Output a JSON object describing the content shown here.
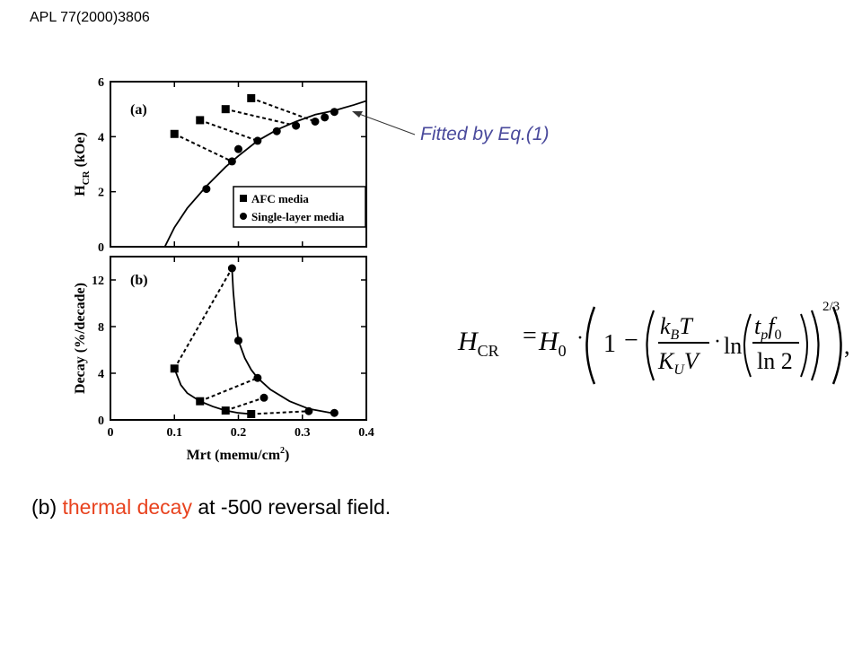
{
  "reference": "APL 77(2000)3806",
  "fit_annotation": "Fitted by Eq.(1)",
  "caption": {
    "prefix": "(b) ",
    "highlight": "thermal decay",
    "suffix": " at -500 reversal field.",
    "highlight_color": "#e8431f"
  },
  "equation": {
    "lhs": "H",
    "lhs_sub": "CR",
    "h0": "H",
    "h0_sub": "0",
    "one": "1",
    "kbT_num": "k",
    "kbT_num_sub": "B",
    "kbT_num_T": "T",
    "kuV_den": "K",
    "kuV_den_sub": "U",
    "kuV_den_V": "V",
    "ln": "ln",
    "tpf0_num_t": "t",
    "tpf0_num_t_sub": "p",
    "tpf0_num_f": "f",
    "tpf0_num_f_sub": "0",
    "tpf0_den": "ln 2",
    "exponent": "2/3"
  },
  "chart_data": [
    {
      "type": "scatter",
      "panel_label": "(a)",
      "ylabel": "H",
      "ylabel_sub": "CR",
      "ylabel_unit": "(kOe)",
      "xlim": [
        0,
        0.4
      ],
      "ylim": [
        0,
        6
      ],
      "y_ticks": [
        "0",
        "2",
        "4",
        "6"
      ],
      "grid": false,
      "legend_position": "bottom-right",
      "series": [
        {
          "name": "AFC media",
          "marker": "square",
          "x": [
            0.1,
            0.14,
            0.18,
            0.22
          ],
          "y": [
            4.1,
            4.6,
            5.0,
            5.4
          ]
        },
        {
          "name": "Single-layer media",
          "marker": "circle",
          "x": [
            0.15,
            0.19,
            0.2,
            0.23,
            0.26,
            0.29,
            0.32,
            0.335,
            0.35
          ],
          "y": [
            2.1,
            3.1,
            3.55,
            3.85,
            4.2,
            4.4,
            4.55,
            4.7,
            4.9
          ]
        }
      ],
      "fit_curve": {
        "x": [
          0.085,
          0.1,
          0.12,
          0.15,
          0.18,
          0.2,
          0.23,
          0.26,
          0.29,
          0.32,
          0.35,
          0.38,
          0.4
        ],
        "y": [
          0.0,
          0.7,
          1.4,
          2.2,
          2.9,
          3.3,
          3.85,
          4.25,
          4.55,
          4.8,
          4.95,
          5.15,
          5.3
        ]
      },
      "connectors": [
        [
          [
            0.1,
            4.1
          ],
          [
            0.19,
            3.1
          ]
        ],
        [
          [
            0.14,
            4.6
          ],
          [
            0.23,
            3.85
          ]
        ],
        [
          [
            0.18,
            5.0
          ],
          [
            0.29,
            4.4
          ]
        ],
        [
          [
            0.22,
            5.4
          ],
          [
            0.32,
            4.55
          ]
        ]
      ]
    },
    {
      "type": "scatter",
      "panel_label": "(b)",
      "ylabel": "Decay",
      "ylabel_unit": "(%/decade)",
      "xlabel": "Mrt (memu/cm",
      "xlabel_sup": "2",
      "xlabel_close": ")",
      "xlim": [
        0,
        0.4
      ],
      "ylim": [
        0,
        14
      ],
      "x_ticks": [
        "0",
        "0.1",
        "0.2",
        "0.3",
        "0.4"
      ],
      "y_ticks": [
        "0",
        "4",
        "8",
        "12"
      ],
      "grid": false,
      "series": [
        {
          "name": "AFC media",
          "marker": "square",
          "x": [
            0.1,
            0.14,
            0.18,
            0.22
          ],
          "y": [
            4.4,
            1.6,
            0.8,
            0.5
          ]
        },
        {
          "name": "Single-layer media",
          "marker": "circle",
          "x": [
            0.19,
            0.2,
            0.23,
            0.24,
            0.31,
            0.35
          ],
          "y": [
            13.0,
            6.8,
            3.6,
            1.9,
            0.75,
            0.6
          ]
        }
      ],
      "afc_curve": {
        "x": [
          0.1,
          0.11,
          0.12,
          0.14,
          0.16,
          0.18,
          0.2,
          0.22
        ],
        "y": [
          4.4,
          3.0,
          2.3,
          1.6,
          1.15,
          0.8,
          0.6,
          0.5
        ]
      },
      "single_curve": {
        "x": [
          0.19,
          0.192,
          0.196,
          0.2,
          0.21,
          0.22,
          0.23,
          0.25,
          0.28,
          0.31,
          0.35
        ],
        "y": [
          13.0,
          11.0,
          8.5,
          6.8,
          5.3,
          4.3,
          3.6,
          2.6,
          1.6,
          0.95,
          0.55
        ]
      },
      "connectors": [
        [
          [
            0.1,
            4.4
          ],
          [
            0.19,
            13.0
          ]
        ],
        [
          [
            0.14,
            1.6
          ],
          [
            0.23,
            3.6
          ]
        ],
        [
          [
            0.18,
            0.8
          ],
          [
            0.24,
            1.9
          ]
        ],
        [
          [
            0.22,
            0.5
          ],
          [
            0.31,
            0.75
          ]
        ]
      ]
    }
  ]
}
